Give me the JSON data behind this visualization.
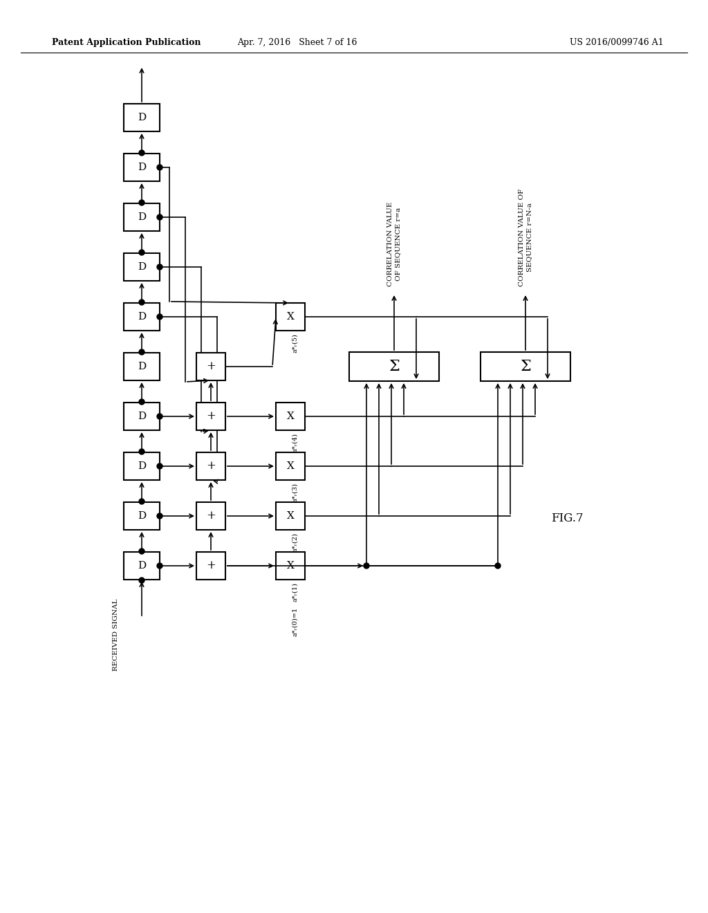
{
  "title_left": "Patent Application Publication",
  "title_center": "Apr. 7, 2016   Sheet 7 of 16",
  "title_right": "US 2016/0099746 A1",
  "fig_label": "FIG.7",
  "bg_color": "#ffffff",
  "line_color": "#000000",
  "text_color": "#000000",
  "corr1_text": "CORRELATION VALUE\nOF SEQUENCE r=a",
  "corr2_text": "CORRELATION VALUE OF\nSEQUENCE r=N-a",
  "received_signal": "RECEIVED SIGNAL",
  "a_labels": [
    "*a_r(5)",
    "*a_r(4)",
    "*a_r(3)",
    "*a_r(2)",
    "*a_r(1)",
    "*a_r(0)=1"
  ]
}
